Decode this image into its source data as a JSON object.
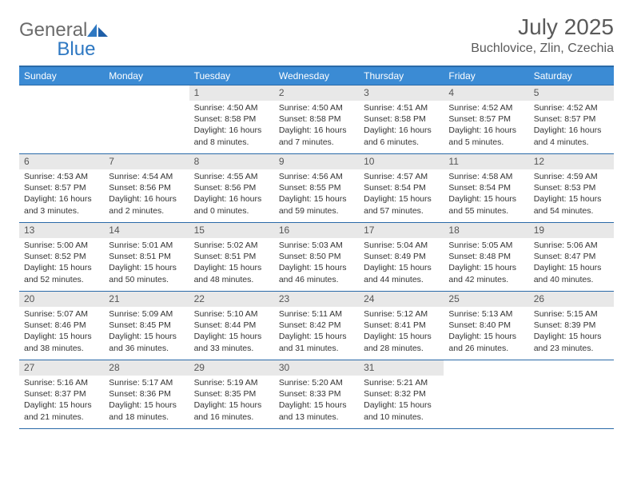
{
  "brand": {
    "part1": "General",
    "part2": "Blue"
  },
  "title": "July 2025",
  "location": "Buchlovice, Zlin, Czechia",
  "colors": {
    "header_bg": "#3b8bd4",
    "header_border": "#2a6aa8",
    "daynum_bg": "#e8e8e8",
    "text": "#333333",
    "brand_gray": "#6b6b6b",
    "brand_blue": "#2e78c2"
  },
  "weekdays": [
    "Sunday",
    "Monday",
    "Tuesday",
    "Wednesday",
    "Thursday",
    "Friday",
    "Saturday"
  ],
  "weeks": [
    [
      {
        "empty": true
      },
      {
        "empty": true
      },
      {
        "n": "1",
        "sr": "Sunrise: 4:50 AM",
        "ss": "Sunset: 8:58 PM",
        "dl": "Daylight: 16 hours and 8 minutes."
      },
      {
        "n": "2",
        "sr": "Sunrise: 4:50 AM",
        "ss": "Sunset: 8:58 PM",
        "dl": "Daylight: 16 hours and 7 minutes."
      },
      {
        "n": "3",
        "sr": "Sunrise: 4:51 AM",
        "ss": "Sunset: 8:58 PM",
        "dl": "Daylight: 16 hours and 6 minutes."
      },
      {
        "n": "4",
        "sr": "Sunrise: 4:52 AM",
        "ss": "Sunset: 8:57 PM",
        "dl": "Daylight: 16 hours and 5 minutes."
      },
      {
        "n": "5",
        "sr": "Sunrise: 4:52 AM",
        "ss": "Sunset: 8:57 PM",
        "dl": "Daylight: 16 hours and 4 minutes."
      }
    ],
    [
      {
        "n": "6",
        "sr": "Sunrise: 4:53 AM",
        "ss": "Sunset: 8:57 PM",
        "dl": "Daylight: 16 hours and 3 minutes."
      },
      {
        "n": "7",
        "sr": "Sunrise: 4:54 AM",
        "ss": "Sunset: 8:56 PM",
        "dl": "Daylight: 16 hours and 2 minutes."
      },
      {
        "n": "8",
        "sr": "Sunrise: 4:55 AM",
        "ss": "Sunset: 8:56 PM",
        "dl": "Daylight: 16 hours and 0 minutes."
      },
      {
        "n": "9",
        "sr": "Sunrise: 4:56 AM",
        "ss": "Sunset: 8:55 PM",
        "dl": "Daylight: 15 hours and 59 minutes."
      },
      {
        "n": "10",
        "sr": "Sunrise: 4:57 AM",
        "ss": "Sunset: 8:54 PM",
        "dl": "Daylight: 15 hours and 57 minutes."
      },
      {
        "n": "11",
        "sr": "Sunrise: 4:58 AM",
        "ss": "Sunset: 8:54 PM",
        "dl": "Daylight: 15 hours and 55 minutes."
      },
      {
        "n": "12",
        "sr": "Sunrise: 4:59 AM",
        "ss": "Sunset: 8:53 PM",
        "dl": "Daylight: 15 hours and 54 minutes."
      }
    ],
    [
      {
        "n": "13",
        "sr": "Sunrise: 5:00 AM",
        "ss": "Sunset: 8:52 PM",
        "dl": "Daylight: 15 hours and 52 minutes."
      },
      {
        "n": "14",
        "sr": "Sunrise: 5:01 AM",
        "ss": "Sunset: 8:51 PM",
        "dl": "Daylight: 15 hours and 50 minutes."
      },
      {
        "n": "15",
        "sr": "Sunrise: 5:02 AM",
        "ss": "Sunset: 8:51 PM",
        "dl": "Daylight: 15 hours and 48 minutes."
      },
      {
        "n": "16",
        "sr": "Sunrise: 5:03 AM",
        "ss": "Sunset: 8:50 PM",
        "dl": "Daylight: 15 hours and 46 minutes."
      },
      {
        "n": "17",
        "sr": "Sunrise: 5:04 AM",
        "ss": "Sunset: 8:49 PM",
        "dl": "Daylight: 15 hours and 44 minutes."
      },
      {
        "n": "18",
        "sr": "Sunrise: 5:05 AM",
        "ss": "Sunset: 8:48 PM",
        "dl": "Daylight: 15 hours and 42 minutes."
      },
      {
        "n": "19",
        "sr": "Sunrise: 5:06 AM",
        "ss": "Sunset: 8:47 PM",
        "dl": "Daylight: 15 hours and 40 minutes."
      }
    ],
    [
      {
        "n": "20",
        "sr": "Sunrise: 5:07 AM",
        "ss": "Sunset: 8:46 PM",
        "dl": "Daylight: 15 hours and 38 minutes."
      },
      {
        "n": "21",
        "sr": "Sunrise: 5:09 AM",
        "ss": "Sunset: 8:45 PM",
        "dl": "Daylight: 15 hours and 36 minutes."
      },
      {
        "n": "22",
        "sr": "Sunrise: 5:10 AM",
        "ss": "Sunset: 8:44 PM",
        "dl": "Daylight: 15 hours and 33 minutes."
      },
      {
        "n": "23",
        "sr": "Sunrise: 5:11 AM",
        "ss": "Sunset: 8:42 PM",
        "dl": "Daylight: 15 hours and 31 minutes."
      },
      {
        "n": "24",
        "sr": "Sunrise: 5:12 AM",
        "ss": "Sunset: 8:41 PM",
        "dl": "Daylight: 15 hours and 28 minutes."
      },
      {
        "n": "25",
        "sr": "Sunrise: 5:13 AM",
        "ss": "Sunset: 8:40 PM",
        "dl": "Daylight: 15 hours and 26 minutes."
      },
      {
        "n": "26",
        "sr": "Sunrise: 5:15 AM",
        "ss": "Sunset: 8:39 PM",
        "dl": "Daylight: 15 hours and 23 minutes."
      }
    ],
    [
      {
        "n": "27",
        "sr": "Sunrise: 5:16 AM",
        "ss": "Sunset: 8:37 PM",
        "dl": "Daylight: 15 hours and 21 minutes."
      },
      {
        "n": "28",
        "sr": "Sunrise: 5:17 AM",
        "ss": "Sunset: 8:36 PM",
        "dl": "Daylight: 15 hours and 18 minutes."
      },
      {
        "n": "29",
        "sr": "Sunrise: 5:19 AM",
        "ss": "Sunset: 8:35 PM",
        "dl": "Daylight: 15 hours and 16 minutes."
      },
      {
        "n": "30",
        "sr": "Sunrise: 5:20 AM",
        "ss": "Sunset: 8:33 PM",
        "dl": "Daylight: 15 hours and 13 minutes."
      },
      {
        "n": "31",
        "sr": "Sunrise: 5:21 AM",
        "ss": "Sunset: 8:32 PM",
        "dl": "Daylight: 15 hours and 10 minutes."
      },
      {
        "empty": true
      },
      {
        "empty": true
      }
    ]
  ]
}
